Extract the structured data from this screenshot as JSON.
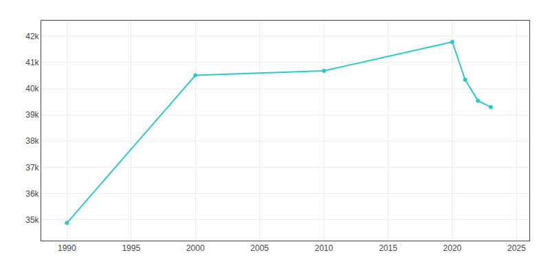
{
  "chart_data": {
    "type": "line",
    "x": [
      1990,
      2000,
      2010,
      2020,
      2021,
      2022,
      2023
    ],
    "values": [
      34874,
      40513,
      40684,
      41786,
      40340,
      39545,
      39296
    ],
    "color": "#2ec8c8",
    "marker": "circle",
    "xlim": [
      1988,
      2026
    ],
    "xticks": [
      1990,
      1995,
      2000,
      2005,
      2010,
      2015,
      2020,
      2025
    ],
    "ylim": [
      34200,
      42600
    ],
    "yticks": [
      {
        "value": 35000,
        "label": "35k"
      },
      {
        "value": 36000,
        "label": "36k"
      },
      {
        "value": 37000,
        "label": "37k"
      },
      {
        "value": 38000,
        "label": "38k"
      },
      {
        "value": 39000,
        "label": "39k"
      },
      {
        "value": 40000,
        "label": "40k"
      },
      {
        "value": 41000,
        "label": "41k"
      },
      {
        "value": 42000,
        "label": "42k"
      }
    ],
    "grid": true
  }
}
